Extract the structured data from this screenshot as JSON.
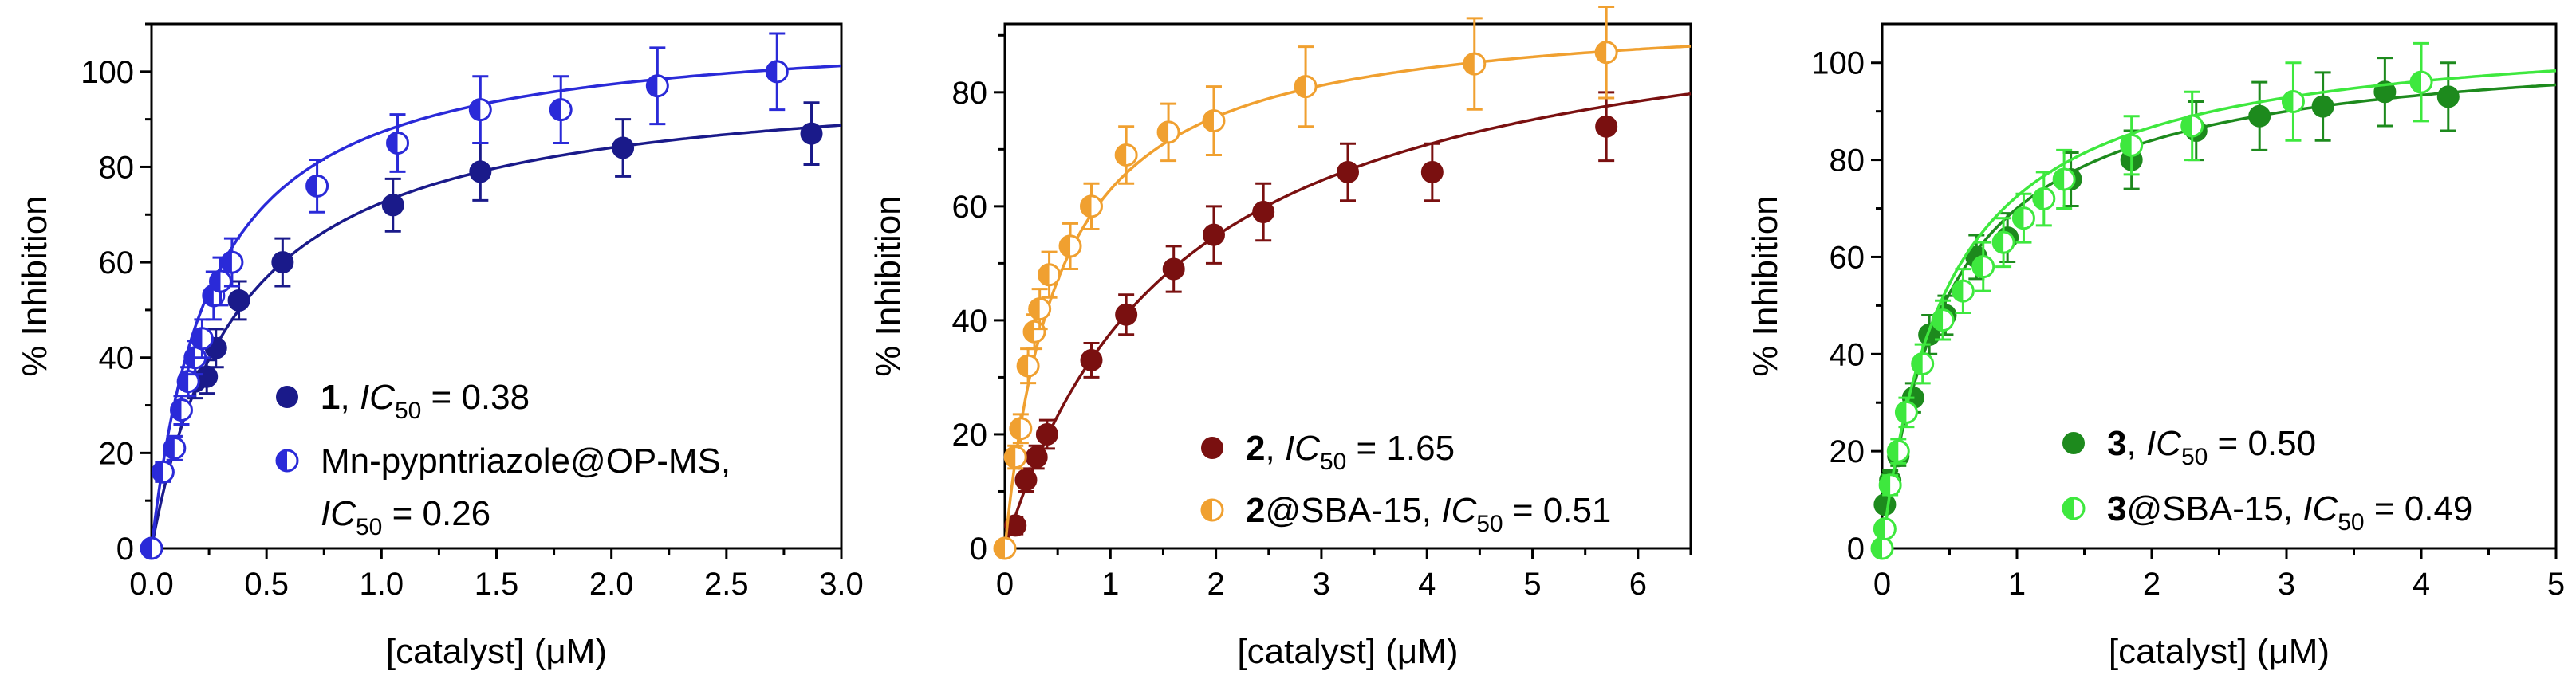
{
  "chart_data": [
    {
      "type": "scatter",
      "panel": "1",
      "xlabel": "[catalyst] (μM)",
      "ylabel": "% Inhibition",
      "xlim": [
        0,
        3.0
      ],
      "ylim": [
        0,
        110
      ],
      "xticks": [
        0.0,
        0.5,
        1.0,
        1.5,
        2.0,
        2.5,
        3.0
      ],
      "xtick_labels": [
        "0.0",
        "0.5",
        "1.0",
        "1.5",
        "2.0",
        "2.5",
        "3.0"
      ],
      "yticks": [
        0,
        20,
        40,
        60,
        80,
        100
      ],
      "ytick_labels": [
        "0",
        "20",
        "40",
        "60",
        "80",
        "100"
      ],
      "legend_position": "lower-right",
      "series": [
        {
          "name": "1",
          "legend": {
            "label": "1",
            "sep": ", ",
            "ic": "IC",
            "sub": "50",
            "value": " = 0.38"
          },
          "color": "#1a1a8a",
          "marker": "filled-circle",
          "fit": {
            "model": "hyperbolic",
            "max": 100,
            "ic50": 0.38
          },
          "points": [
            {
              "x": 0.0,
              "y": 0,
              "err": 0
            },
            {
              "x": 0.05,
              "y": 16,
              "err": 2
            },
            {
              "x": 0.1,
              "y": 21,
              "err": 2.5
            },
            {
              "x": 0.13,
              "y": 29,
              "err": 3
            },
            {
              "x": 0.19,
              "y": 35,
              "err": 3.5
            },
            {
              "x": 0.24,
              "y": 36,
              "err": 3.5
            },
            {
              "x": 0.28,
              "y": 42,
              "err": 4
            },
            {
              "x": 0.38,
              "y": 52,
              "err": 4
            },
            {
              "x": 0.57,
              "y": 60,
              "err": 5
            },
            {
              "x": 1.05,
              "y": 72,
              "err": 5.5
            },
            {
              "x": 1.43,
              "y": 79,
              "err": 6
            },
            {
              "x": 2.05,
              "y": 84,
              "err": 6
            },
            {
              "x": 2.87,
              "y": 87,
              "err": 6.5
            }
          ]
        },
        {
          "name": "Mn-pypntriazole@OP-MS",
          "legend": {
            "label": "Mn-pypntriazole@OP-MS,",
            "line2_ic": "IC",
            "sub": "50",
            "value": " = 0.26"
          },
          "color": "#2a2ad8",
          "marker": "half-circle",
          "fit": {
            "model": "hyperbolic",
            "max": 110,
            "ic50": 0.26
          },
          "points": [
            {
              "x": 0.0,
              "y": 0,
              "err": 0
            },
            {
              "x": 0.05,
              "y": 16,
              "err": 2
            },
            {
              "x": 0.1,
              "y": 21,
              "err": 2.5
            },
            {
              "x": 0.13,
              "y": 29,
              "err": 3
            },
            {
              "x": 0.16,
              "y": 35,
              "err": 3
            },
            {
              "x": 0.19,
              "y": 40,
              "err": 3.5
            },
            {
              "x": 0.22,
              "y": 44,
              "err": 4
            },
            {
              "x": 0.27,
              "y": 53,
              "err": 5
            },
            {
              "x": 0.3,
              "y": 56,
              "err": 5
            },
            {
              "x": 0.35,
              "y": 60,
              "err": 5
            },
            {
              "x": 0.72,
              "y": 76,
              "err": 5.5
            },
            {
              "x": 1.07,
              "y": 85,
              "err": 6
            },
            {
              "x": 1.43,
              "y": 92,
              "err": 7
            },
            {
              "x": 1.78,
              "y": 92,
              "err": 7
            },
            {
              "x": 2.2,
              "y": 97,
              "err": 8
            },
            {
              "x": 2.72,
              "y": 100,
              "err": 8
            }
          ]
        }
      ]
    },
    {
      "type": "scatter",
      "panel": "2",
      "xlabel": "[catalyst] (μM)",
      "ylabel": "% Inhibition",
      "xlim": [
        0,
        6.5
      ],
      "ylim": [
        0,
        92
      ],
      "xticks": [
        0,
        1,
        2,
        3,
        4,
        5,
        6
      ],
      "xtick_labels": [
        "0",
        "1",
        "2",
        "3",
        "4",
        "5",
        "6"
      ],
      "yticks": [
        0,
        20,
        40,
        60,
        80
      ],
      "ytick_labels": [
        "0",
        "20",
        "40",
        "60",
        "80"
      ],
      "legend_position": "lower-right",
      "series": [
        {
          "name": "2",
          "legend": {
            "label": "2",
            "sep": ", ",
            "ic": "IC",
            "sub": "50",
            "value": " = 1.65"
          },
          "color": "#7a1010",
          "marker": "filled-circle",
          "fit": {
            "model": "hyperbolic",
            "max": 100,
            "ic50": 1.65
          },
          "points": [
            {
              "x": 0.0,
              "y": 0,
              "err": 0
            },
            {
              "x": 0.1,
              "y": 4,
              "err": 1.5
            },
            {
              "x": 0.2,
              "y": 12,
              "err": 2
            },
            {
              "x": 0.3,
              "y": 16,
              "err": 2
            },
            {
              "x": 0.4,
              "y": 20,
              "err": 2.5
            },
            {
              "x": 0.82,
              "y": 33,
              "err": 3
            },
            {
              "x": 1.15,
              "y": 41,
              "err": 3.5
            },
            {
              "x": 1.6,
              "y": 49,
              "err": 4
            },
            {
              "x": 1.98,
              "y": 55,
              "err": 5
            },
            {
              "x": 2.45,
              "y": 59,
              "err": 5
            },
            {
              "x": 3.25,
              "y": 66,
              "err": 5
            },
            {
              "x": 4.05,
              "y": 66,
              "err": 5
            },
            {
              "x": 5.7,
              "y": 74,
              "err": 6
            }
          ]
        },
        {
          "name": "2@SBA-15",
          "legend": {
            "label": "2",
            "suffix": "@SBA-15",
            "sep": ", ",
            "ic": "IC",
            "sub": "50",
            "value": " = 0.51"
          },
          "color": "#f0a030",
          "marker": "half-circle",
          "fit": {
            "model": "hyperbolic",
            "max": 95,
            "ic50": 0.51
          },
          "points": [
            {
              "x": 0.0,
              "y": 0,
              "err": 0
            },
            {
              "x": 0.1,
              "y": 16,
              "err": 2
            },
            {
              "x": 0.15,
              "y": 21,
              "err": 2.5
            },
            {
              "x": 0.22,
              "y": 32,
              "err": 3
            },
            {
              "x": 0.28,
              "y": 38,
              "err": 3
            },
            {
              "x": 0.33,
              "y": 42,
              "err": 3.5
            },
            {
              "x": 0.42,
              "y": 48,
              "err": 4
            },
            {
              "x": 0.62,
              "y": 53,
              "err": 4
            },
            {
              "x": 0.82,
              "y": 60,
              "err": 4
            },
            {
              "x": 1.15,
              "y": 69,
              "err": 5
            },
            {
              "x": 1.55,
              "y": 73,
              "err": 5
            },
            {
              "x": 1.98,
              "y": 75,
              "err": 6
            },
            {
              "x": 2.85,
              "y": 81,
              "err": 7
            },
            {
              "x": 4.45,
              "y": 85,
              "err": 8
            },
            {
              "x": 5.7,
              "y": 87,
              "err": 8
            }
          ]
        }
      ]
    },
    {
      "type": "scatter",
      "panel": "3",
      "xlabel": "[catalyst] (μM)",
      "ylabel": "% Inhibition",
      "xlim": [
        0,
        5
      ],
      "ylim": [
        0,
        108
      ],
      "xticks": [
        0,
        1,
        2,
        3,
        4,
        5
      ],
      "xtick_labels": [
        "0",
        "1",
        "2",
        "3",
        "4",
        "5"
      ],
      "yticks": [
        0,
        20,
        40,
        60,
        80,
        100
      ],
      "ytick_labels": [
        "0",
        "20",
        "40",
        "60",
        "80",
        "100"
      ],
      "legend_position": "lower-right",
      "series": [
        {
          "name": "3",
          "legend": {
            "label": "3",
            "sep": ", ",
            "ic": "IC",
            "sub": "50",
            "value": " = 0.50"
          },
          "color": "#1d8a1d",
          "marker": "filled-circle",
          "fit": {
            "model": "hyperbolic",
            "max": 105,
            "ic50": 0.5
          },
          "points": [
            {
              "x": 0.0,
              "y": 0,
              "err": 0
            },
            {
              "x": 0.02,
              "y": 9,
              "err": 1.5
            },
            {
              "x": 0.06,
              "y": 14,
              "err": 2
            },
            {
              "x": 0.12,
              "y": 19,
              "err": 2
            },
            {
              "x": 0.23,
              "y": 31,
              "err": 3
            },
            {
              "x": 0.35,
              "y": 44,
              "err": 4
            },
            {
              "x": 0.47,
              "y": 48,
              "err": 4
            },
            {
              "x": 0.7,
              "y": 60,
              "err": 4.5
            },
            {
              "x": 0.93,
              "y": 64,
              "err": 5
            },
            {
              "x": 1.4,
              "y": 76,
              "err": 5.5
            },
            {
              "x": 1.85,
              "y": 80,
              "err": 6
            },
            {
              "x": 2.33,
              "y": 86,
              "err": 6
            },
            {
              "x": 2.8,
              "y": 89,
              "err": 7
            },
            {
              "x": 3.27,
              "y": 91,
              "err": 7
            },
            {
              "x": 3.73,
              "y": 94,
              "err": 7
            },
            {
              "x": 4.2,
              "y": 93,
              "err": 7
            }
          ]
        },
        {
          "name": "3@SBA-15",
          "legend": {
            "label": "3",
            "suffix": "@SBA-15",
            "sep": ", ",
            "ic": "IC",
            "sub": "50",
            "value": " = 0.49"
          },
          "color": "#3ee83e",
          "marker": "half-circle",
          "fit": {
            "model": "hyperbolic",
            "max": 108,
            "ic50": 0.49
          },
          "points": [
            {
              "x": 0.0,
              "y": 0,
              "err": 0
            },
            {
              "x": 0.02,
              "y": 4,
              "err": 1.5
            },
            {
              "x": 0.06,
              "y": 13,
              "err": 2
            },
            {
              "x": 0.12,
              "y": 20,
              "err": 2.5
            },
            {
              "x": 0.18,
              "y": 28,
              "err": 3
            },
            {
              "x": 0.3,
              "y": 38,
              "err": 4
            },
            {
              "x": 0.45,
              "y": 47,
              "err": 4
            },
            {
              "x": 0.6,
              "y": 53,
              "err": 4.5
            },
            {
              "x": 0.75,
              "y": 58,
              "err": 5
            },
            {
              "x": 0.9,
              "y": 63,
              "err": 5
            },
            {
              "x": 1.05,
              "y": 68,
              "err": 5
            },
            {
              "x": 1.2,
              "y": 72,
              "err": 5.5
            },
            {
              "x": 1.35,
              "y": 76,
              "err": 6
            },
            {
              "x": 1.85,
              "y": 83,
              "err": 6
            },
            {
              "x": 2.3,
              "y": 87,
              "err": 7
            },
            {
              "x": 3.05,
              "y": 92,
              "err": 8
            },
            {
              "x": 4.0,
              "y": 96,
              "err": 8
            }
          ]
        }
      ]
    }
  ]
}
